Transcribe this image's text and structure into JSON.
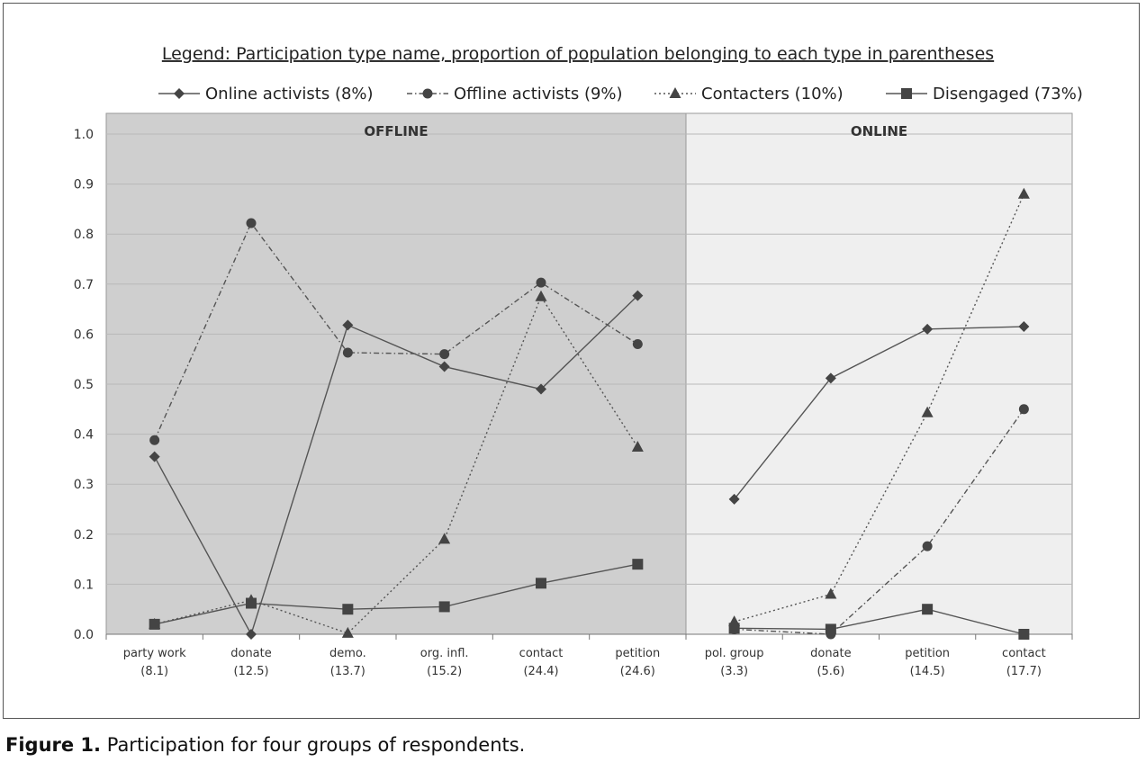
{
  "caption": {
    "label": "Figure 1.",
    "text": "Participation for four groups of respondents."
  },
  "chart_data": {
    "type": "line",
    "title": "Legend: Participation type name, proportion of population belonging to each type in parentheses",
    "xlabel": "",
    "ylabel": "",
    "ylim": [
      0,
      1.0
    ],
    "yticks": [
      "0.0",
      "0.1",
      "0.2",
      "0.3",
      "0.4",
      "0.5",
      "0.6",
      "0.7",
      "0.8",
      "0.9",
      "1.0"
    ],
    "grid": true,
    "legend_position": "top",
    "panels": [
      {
        "name": "OFFLINE",
        "background": "#cfcfcf",
        "categories": [
          {
            "name": "party work",
            "value": "(8.1)"
          },
          {
            "name": "donate",
            "value": "(12.5)"
          },
          {
            "name": "demo.",
            "value": "(13.7)"
          },
          {
            "name": "org. infl.",
            "value": "(15.2)"
          },
          {
            "name": "contact",
            "value": "(24.4)"
          },
          {
            "name": "petition",
            "value": "(24.6)"
          }
        ]
      },
      {
        "name": "ONLINE",
        "background": "#efefef",
        "categories": [
          {
            "name": "pol. group",
            "value": "(3.3)"
          },
          {
            "name": "donate",
            "value": "(5.6)"
          },
          {
            "name": "petition",
            "value": "(14.5)"
          },
          {
            "name": "contact",
            "value": "(17.7)"
          }
        ]
      }
    ],
    "series": [
      {
        "name": "Online activists (8%)",
        "marker": "diamond",
        "dash": "solid",
        "values": [
          [
            0.355,
            0.0,
            0.618,
            0.535,
            0.49,
            0.677
          ],
          [
            0.27,
            0.512,
            0.61,
            0.615
          ]
        ]
      },
      {
        "name": "Offline activists (9%)",
        "marker": "circle",
        "dash": "dashdot",
        "values": [
          [
            0.388,
            0.822,
            0.563,
            0.56,
            0.703,
            0.58
          ],
          [
            0.01,
            0.0,
            0.176,
            0.45
          ]
        ]
      },
      {
        "name": "Contacters (10%)",
        "marker": "triangle",
        "dash": "dotted",
        "values": [
          [
            0.02,
            0.068,
            0.002,
            0.19,
            0.675,
            0.374
          ],
          [
            0.025,
            0.08,
            0.443,
            0.88
          ]
        ]
      },
      {
        "name": "Disengaged (73%)",
        "marker": "square",
        "dash": "solid",
        "values": [
          [
            0.02,
            0.062,
            0.05,
            0.055,
            0.102,
            0.14
          ],
          [
            0.012,
            0.01,
            0.05,
            0.0
          ]
        ]
      }
    ],
    "colors": {
      "line": "#555555",
      "marker": "#444444",
      "grid": "#b8b8b8"
    }
  }
}
